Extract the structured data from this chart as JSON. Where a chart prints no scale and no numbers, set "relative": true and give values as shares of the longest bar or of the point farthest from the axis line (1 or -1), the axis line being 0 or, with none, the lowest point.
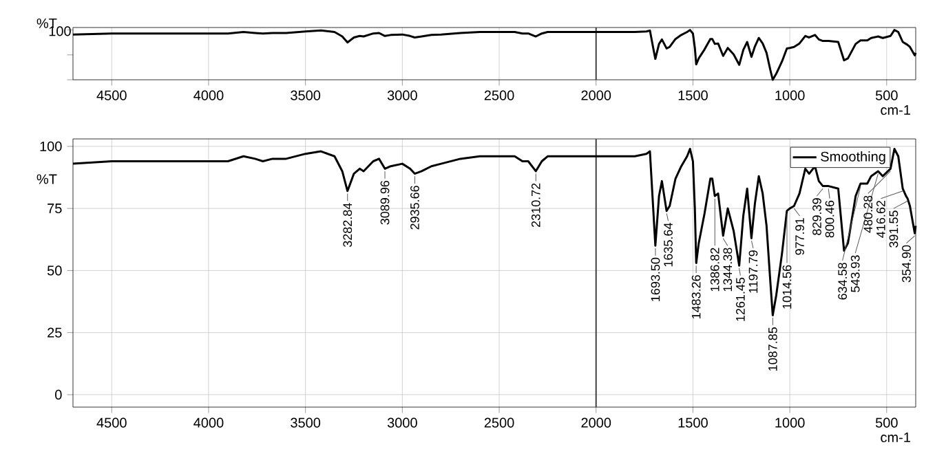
{
  "chart_data": [
    {
      "type": "line",
      "ylabel": "%T",
      "xlabel": "cm-1",
      "xlim": [
        4700,
        350
      ],
      "relative": true,
      "xticks": [
        4500,
        4000,
        3500,
        3000,
        2500,
        2000,
        1500,
        1000,
        500
      ],
      "annotations": [
        "100"
      ],
      "grid": "x",
      "marker": "none",
      "line_style": "solid",
      "legend": false,
      "ref_lines": [
        {
          "axis": "x",
          "value": 2000,
          "color": "#404040"
        }
      ],
      "x": [
        4700,
        4500,
        4000,
        3900,
        3820,
        3760,
        3720,
        3670,
        3600,
        3500,
        3420,
        3350,
        3310,
        3283,
        3250,
        3220,
        3200,
        3150,
        3120,
        3090,
        3060,
        3000,
        2960,
        2936,
        2900,
        2850,
        2800,
        2700,
        2600,
        2420,
        2380,
        2350,
        2311,
        2280,
        2250,
        2100,
        2000,
        1800,
        1740,
        1722,
        1705,
        1694,
        1675,
        1660,
        1636,
        1620,
        1590,
        1560,
        1530,
        1515,
        1500,
        1490,
        1483,
        1470,
        1440,
        1410,
        1400,
        1387,
        1370,
        1344,
        1320,
        1290,
        1261,
        1240,
        1220,
        1198,
        1180,
        1160,
        1140,
        1120,
        1100,
        1088,
        1070,
        1040,
        1015,
        1000,
        978,
        950,
        920,
        900,
        870,
        850,
        829,
        800,
        750,
        720,
        700,
        660,
        635,
        600,
        580,
        544,
        520,
        480,
        460,
        440,
        417,
        400,
        392,
        380,
        355,
        350
      ],
      "series": [
        {
          "color": "#000000",
          "values": [
            0.91,
            0.93,
            0.93,
            0.93,
            0.96,
            0.94,
            0.93,
            0.94,
            0.94,
            0.97,
            0.99,
            0.96,
            0.87,
            0.75,
            0.85,
            0.88,
            0.87,
            0.93,
            0.94,
            0.88,
            0.9,
            0.91,
            0.88,
            0.85,
            0.87,
            0.9,
            0.91,
            0.94,
            0.96,
            0.96,
            0.93,
            0.93,
            0.87,
            0.93,
            0.96,
            0.96,
            0.96,
            0.96,
            0.97,
            0.99,
            0.64,
            0.42,
            0.72,
            0.81,
            0.63,
            0.66,
            0.82,
            0.9,
            0.96,
            1,
            0.93,
            0.64,
            0.31,
            0.43,
            0.61,
            0.82,
            0.82,
            0.72,
            0.73,
            0.48,
            0.64,
            0.51,
            0.3,
            0.6,
            0.76,
            0.46,
            0.67,
            0.84,
            0.73,
            0.54,
            0.19,
            0,
            0.12,
            0.37,
            0.63,
            0.64,
            0.66,
            0.73,
            0.88,
            0.85,
            0.9,
            0.81,
            0.78,
            0.78,
            0.76,
            0.39,
            0.43,
            0.72,
            0.79,
            0.79,
            0.84,
            0.87,
            0.84,
            0.88,
            1,
            0.96,
            0.76,
            0.72,
            0.7,
            0.66,
            0.49,
            0.54
          ]
        }
      ]
    },
    {
      "type": "line",
      "ylabel": "%T",
      "xlabel": "cm-1",
      "xlim": [
        4700,
        350
      ],
      "ylim": [
        -5,
        103
      ],
      "xticks": [
        4500,
        4000,
        3500,
        3000,
        2500,
        2000,
        1500,
        1000,
        500
      ],
      "yticks": [
        0,
        25,
        50,
        75,
        100
      ],
      "grid": true,
      "marker": "none",
      "line_style": "solid",
      "legend": "top right",
      "ref_lines": [
        {
          "axis": "x",
          "value": 2000,
          "color": "#404040"
        }
      ],
      "x": [
        4700,
        4500,
        4000,
        3900,
        3820,
        3760,
        3720,
        3670,
        3600,
        3500,
        3420,
        3350,
        3310,
        3283,
        3250,
        3220,
        3200,
        3150,
        3120,
        3090,
        3060,
        3000,
        2960,
        2936,
        2900,
        2850,
        2800,
        2700,
        2600,
        2420,
        2380,
        2350,
        2311,
        2280,
        2250,
        2100,
        2000,
        1800,
        1740,
        1722,
        1705,
        1694,
        1675,
        1660,
        1636,
        1620,
        1590,
        1560,
        1530,
        1515,
        1500,
        1490,
        1483,
        1470,
        1440,
        1410,
        1400,
        1387,
        1370,
        1344,
        1320,
        1290,
        1261,
        1240,
        1220,
        1198,
        1180,
        1160,
        1140,
        1120,
        1100,
        1088,
        1070,
        1040,
        1015,
        1000,
        978,
        950,
        920,
        900,
        870,
        850,
        829,
        800,
        750,
        720,
        700,
        660,
        635,
        600,
        580,
        544,
        520,
        480,
        460,
        440,
        417,
        400,
        392,
        380,
        355,
        350
      ],
      "series": [
        {
          "name": "Smoothing",
          "color": "#000000",
          "values": [
            93,
            94,
            94,
            94,
            96,
            95,
            94,
            95,
            95,
            97,
            98,
            96,
            90,
            82,
            89,
            91,
            90,
            94,
            95,
            91,
            92,
            93,
            91,
            89,
            90,
            92,
            93,
            95,
            96,
            96,
            94,
            94,
            90,
            94,
            96,
            96,
            96,
            96,
            97,
            98,
            75,
            60,
            80,
            86,
            74,
            76,
            87,
            92,
            96,
            99,
            94,
            75,
            53,
            61,
            73,
            87,
            87,
            80,
            81,
            64,
            75,
            66,
            52,
            72,
            83,
            63,
            77,
            88,
            81,
            68,
            45,
            32,
            40,
            57,
            74,
            75,
            76,
            81,
            91,
            89,
            92,
            86,
            84,
            84,
            83,
            58,
            61,
            80,
            85,
            85,
            88,
            90,
            88,
            91,
            99,
            96,
            83,
            80,
            79,
            76,
            65,
            68
          ]
        }
      ],
      "annotations": [
        {
          "text": "3282.84",
          "x": 3282.84,
          "y": 82
        },
        {
          "text": "3089.96",
          "x": 3089.96,
          "y": 91
        },
        {
          "text": "2935.66",
          "x": 2935.66,
          "y": 89
        },
        {
          "text": "2310.72",
          "x": 2310.72,
          "y": 90
        },
        {
          "text": "1693.50",
          "x": 1693.5,
          "y": 60
        },
        {
          "text": "1635.64",
          "x": 1635.64,
          "y": 74
        },
        {
          "text": "1483.26",
          "x": 1483.26,
          "y": 53
        },
        {
          "text": "1386.82",
          "x": 1386.82,
          "y": 80
        },
        {
          "text": "1344.38",
          "x": 1344.38,
          "y": 64
        },
        {
          "text": "1261.45",
          "x": 1261.45,
          "y": 52
        },
        {
          "text": "1197.79",
          "x": 1197.79,
          "y": 63
        },
        {
          "text": "1087.85",
          "x": 1087.85,
          "y": 32
        },
        {
          "text": "1014.56",
          "x": 1014.56,
          "y": 74
        },
        {
          "text": "977.91",
          "x": 977.91,
          "y": 76
        },
        {
          "text": "829.39",
          "x": 829.39,
          "y": 84
        },
        {
          "text": "800.46",
          "x": 800.46,
          "y": 84
        },
        {
          "text": "634.58",
          "x": 634.58,
          "y": 85
        },
        {
          "text": "543.93",
          "x": 543.93,
          "y": 90
        },
        {
          "text": "480.28",
          "x": 480.28,
          "y": 91
        },
        {
          "text": "416.62",
          "x": 416.62,
          "y": 83
        },
        {
          "text": "391.55",
          "x": 391.55,
          "y": 79
        },
        {
          "text": "354.90",
          "x": 354.9,
          "y": 65
        }
      ]
    }
  ]
}
